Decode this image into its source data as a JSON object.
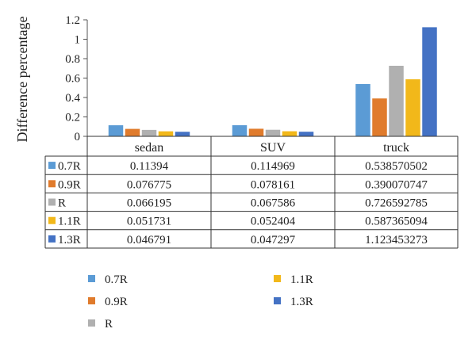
{
  "chart_data": {
    "type": "bar",
    "ylabel": "Difference percentage",
    "categories": [
      "sedan",
      "SUV",
      "truck"
    ],
    "ylim": [
      0,
      1.2
    ],
    "yticks": [
      "0",
      "0.2",
      "0.4",
      "0.6",
      "0.8",
      "1",
      "1.2"
    ],
    "grid": false,
    "legend_position": "bottom",
    "series": [
      {
        "name": "0.7R",
        "color": "#5b9bd5",
        "values": [
          0.11394,
          0.114969,
          0.538570502
        ]
      },
      {
        "name": "0.9R",
        "color": "#e07b2c",
        "values": [
          0.076775,
          0.078161,
          0.390070747
        ]
      },
      {
        "name": "R",
        "color": "#b0b0b0",
        "values": [
          0.066195,
          0.067586,
          0.726592785
        ]
      },
      {
        "name": "1.1R",
        "color": "#f2b81a",
        "values": [
          0.051731,
          0.052404,
          0.587365094
        ]
      },
      {
        "name": "1.3R",
        "color": "#4472c4",
        "values": [
          0.046791,
          0.047297,
          1.123453273
        ]
      }
    ],
    "table": {
      "rows": [
        [
          "0.11394",
          "0.114969",
          "0.538570502"
        ],
        [
          "0.076775",
          "0.078161",
          "0.390070747"
        ],
        [
          "0.066195",
          "0.067586",
          "0.726592785"
        ],
        [
          "0.051731",
          "0.052404",
          "0.587365094"
        ],
        [
          "0.046791",
          "0.047297",
          "1.123453273"
        ]
      ]
    }
  }
}
